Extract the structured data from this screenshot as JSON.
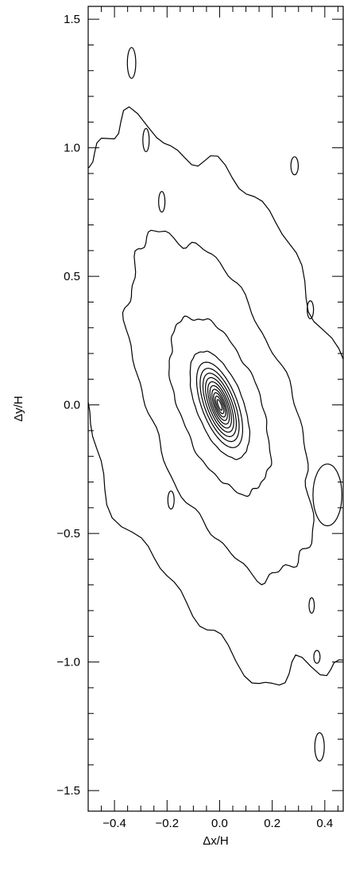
{
  "chart_data": {
    "type": "contour",
    "title": "",
    "xlabel": "Δx/H",
    "ylabel": "Δy/H",
    "xlim": [
      -0.5,
      0.47
    ],
    "ylim": [
      -1.58,
      1.55
    ],
    "xticks": [
      -0.4,
      -0.2,
      0.0,
      0.2,
      0.4
    ],
    "xtick_labels": [
      "−0.4",
      "−0.2",
      "0.0",
      "0.2",
      "0.4"
    ],
    "yticks": [
      -1.5,
      -1.0,
      -0.5,
      0.0,
      0.5,
      1.0,
      1.5
    ],
    "ytick_labels": [
      "−1.5",
      "−1.0",
      "−0.5",
      "0.0",
      "0.5",
      "1.0",
      "1.5"
    ],
    "grid": false,
    "legend": "none",
    "line_color": "#000000",
    "levels": [
      {
        "name": "level-1",
        "rx": 0.5,
        "ry": 1.12,
        "tilt_deg": 20,
        "jitter": 0.1,
        "seed": 1
      },
      {
        "name": "level-2",
        "rx": 0.27,
        "ry": 0.7,
        "tilt_deg": 20,
        "jitter": 0.07,
        "seed": 2
      },
      {
        "name": "level-3",
        "rx": 0.155,
        "ry": 0.36,
        "tilt_deg": 20,
        "jitter": 0.05,
        "seed": 3
      },
      {
        "name": "level-4",
        "rx": 0.09,
        "ry": 0.22,
        "tilt_deg": 20,
        "jitter": 0.02,
        "seed": 4
      },
      {
        "name": "level-5",
        "rx": 0.068,
        "ry": 0.175,
        "tilt_deg": 20,
        "jitter": 0.0,
        "seed": 5
      },
      {
        "name": "level-6",
        "rx": 0.057,
        "ry": 0.15,
        "tilt_deg": 20,
        "jitter": 0.0,
        "seed": 6
      },
      {
        "name": "level-7",
        "rx": 0.048,
        "ry": 0.13,
        "tilt_deg": 20,
        "jitter": 0.0,
        "seed": 7
      },
      {
        "name": "level-8",
        "rx": 0.04,
        "ry": 0.112,
        "tilt_deg": 20,
        "jitter": 0.0,
        "seed": 8
      },
      {
        "name": "level-9",
        "rx": 0.033,
        "ry": 0.095,
        "tilt_deg": 20,
        "jitter": 0.0,
        "seed": 9
      },
      {
        "name": "level-10",
        "rx": 0.027,
        "ry": 0.079,
        "tilt_deg": 20,
        "jitter": 0.0,
        "seed": 10
      },
      {
        "name": "level-11",
        "rx": 0.021,
        "ry": 0.064,
        "tilt_deg": 20,
        "jitter": 0.0,
        "seed": 11
      },
      {
        "name": "level-12",
        "rx": 0.016,
        "ry": 0.05,
        "tilt_deg": 20,
        "jitter": 0.0,
        "seed": 12
      },
      {
        "name": "level-13",
        "rx": 0.011,
        "ry": 0.036,
        "tilt_deg": 20,
        "jitter": 0.0,
        "seed": 13
      },
      {
        "name": "level-14",
        "rx": 0.006,
        "ry": 0.022,
        "tilt_deg": 20,
        "jitter": 0.0,
        "seed": 14
      }
    ],
    "islands": [
      {
        "name": "island-1",
        "cx": -0.335,
        "cy": 1.33,
        "rx": 0.016,
        "ry": 0.06
      },
      {
        "name": "island-2",
        "cx": -0.28,
        "cy": 1.03,
        "rx": 0.012,
        "ry": 0.045
      },
      {
        "name": "island-3",
        "cx": 0.285,
        "cy": 0.93,
        "rx": 0.014,
        "ry": 0.035
      },
      {
        "name": "island-4",
        "cx": -0.22,
        "cy": 0.79,
        "rx": 0.012,
        "ry": 0.04
      },
      {
        "name": "island-5",
        "cx": 0.345,
        "cy": 0.37,
        "rx": 0.012,
        "ry": 0.035
      },
      {
        "name": "island-6",
        "cx": 0.41,
        "cy": -0.35,
        "rx": 0.055,
        "ry": 0.12
      },
      {
        "name": "island-7",
        "cx": -0.185,
        "cy": -0.37,
        "rx": 0.012,
        "ry": 0.035
      },
      {
        "name": "island-8",
        "cx": 0.35,
        "cy": -0.78,
        "rx": 0.01,
        "ry": 0.03
      },
      {
        "name": "island-9",
        "cx": 0.37,
        "cy": -0.98,
        "rx": 0.012,
        "ry": 0.025
      },
      {
        "name": "island-10",
        "cx": 0.38,
        "cy": -1.33,
        "rx": 0.018,
        "ry": 0.055
      }
    ]
  }
}
